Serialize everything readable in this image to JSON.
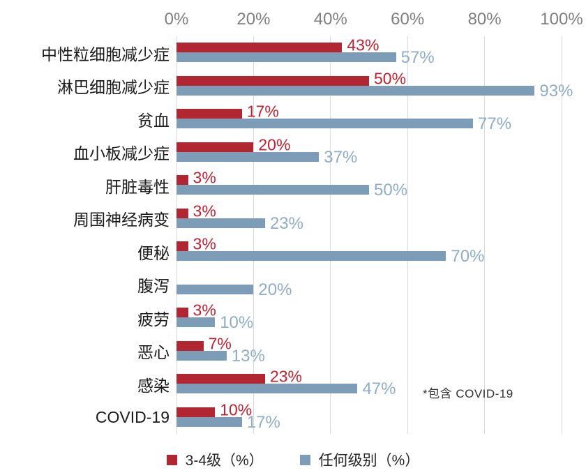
{
  "chart_data": {
    "type": "bar",
    "orientation": "horizontal",
    "title": "",
    "xlabel": "",
    "ylabel": "",
    "x_axis": {
      "min": 0,
      "max": 100,
      "ticks": [
        "0%",
        "20%",
        "40%",
        "60%",
        "80%",
        "100%"
      ],
      "tick_values": [
        0,
        20,
        40,
        60,
        80,
        100
      ]
    },
    "grid": "vertical",
    "legend_position": "bottom",
    "categories": [
      "中性粒细胞减少症",
      "淋巴细胞减少症",
      "贫血",
      "血小板减少症",
      "肝脏毒性",
      "周围神经病变",
      "便秘",
      "腹泻",
      "疲劳",
      "恶心",
      "感染",
      "COVID-19"
    ],
    "series": [
      {
        "name": "3-4级（%）",
        "color": "#b22632",
        "label_color": "#bf2130",
        "values": [
          43,
          50,
          17,
          20,
          3,
          3,
          3,
          null,
          3,
          7,
          23,
          10
        ]
      },
      {
        "name": "任何级别（%）",
        "color": "#7d9cb8",
        "label_color": "#8fadc6",
        "values": [
          57,
          93,
          77,
          37,
          50,
          23,
          70,
          20,
          10,
          13,
          47,
          17
        ]
      }
    ],
    "value_label_suffix": "%",
    "annotation": "*包含 COVID-19"
  },
  "colors": {
    "grid": "#d9d9d9",
    "axis_text": "#7f7f7f",
    "category_text": "#1a1a1a",
    "annotation_text": "#333333",
    "background": "#ffffff"
  }
}
